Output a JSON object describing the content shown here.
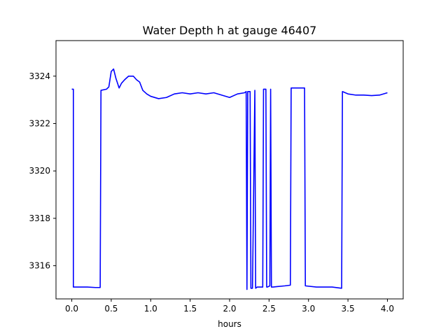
{
  "chart_data": {
    "type": "line",
    "title": "Water Depth h at gauge 46407",
    "xlabel": "hours",
    "ylabel": "",
    "xlim": [
      -0.2,
      4.2
    ],
    "ylim": [
      3314.6,
      3325.5
    ],
    "xticks": [
      0.0,
      0.5,
      1.0,
      1.5,
      2.0,
      2.5,
      3.0,
      3.5,
      4.0
    ],
    "xtick_labels": [
      "0.0",
      "0.5",
      "1.0",
      "1.5",
      "2.0",
      "2.5",
      "3.0",
      "3.5",
      "4.0"
    ],
    "yticks": [
      3316,
      3318,
      3320,
      3322,
      3324
    ],
    "ytick_labels": [
      "3316",
      "3318",
      "3320",
      "3322",
      "3324"
    ],
    "grid": false,
    "series": [
      {
        "color": "#0000ff",
        "x": [
          0.0,
          0.02,
          0.02,
          0.1,
          0.2,
          0.3,
          0.36,
          0.37,
          0.44,
          0.47,
          0.5,
          0.53,
          0.56,
          0.6,
          0.63,
          0.67,
          0.72,
          0.78,
          0.82,
          0.86,
          0.9,
          0.95,
          1.0,
          1.1,
          1.2,
          1.3,
          1.4,
          1.5,
          1.6,
          1.7,
          1.8,
          1.9,
          2.0,
          2.1,
          2.19,
          2.21,
          2.22,
          2.23,
          2.26,
          2.27,
          2.29,
          2.32,
          2.33,
          2.35,
          2.42,
          2.43,
          2.46,
          2.47,
          2.48,
          2.51,
          2.52,
          2.53,
          2.55,
          2.6,
          2.7,
          2.77,
          2.78,
          2.85,
          2.95,
          2.96,
          3.1,
          3.3,
          3.42,
          3.43,
          3.5,
          3.6,
          3.7,
          3.8,
          3.9,
          4.0
        ],
        "y": [
          3323.45,
          3323.45,
          3315.1,
          3315.1,
          3315.1,
          3315.08,
          3315.08,
          3323.4,
          3323.45,
          3323.55,
          3324.2,
          3324.3,
          3323.9,
          3323.5,
          3323.7,
          3323.85,
          3324.0,
          3324.0,
          3323.85,
          3323.75,
          3323.4,
          3323.25,
          3323.15,
          3323.05,
          3323.1,
          3323.25,
          3323.3,
          3323.25,
          3323.3,
          3323.25,
          3323.3,
          3323.2,
          3323.1,
          3323.25,
          3323.3,
          3323.35,
          3315.0,
          3323.35,
          3323.35,
          3315.05,
          3315.05,
          3323.4,
          3315.05,
          3315.1,
          3315.1,
          3323.45,
          3323.45,
          3315.1,
          3315.1,
          3315.15,
          3323.45,
          3315.1,
          3315.1,
          3315.12,
          3315.15,
          3315.18,
          3323.5,
          3323.5,
          3323.5,
          3315.15,
          3315.1,
          3315.1,
          3315.05,
          3323.35,
          3323.25,
          3323.2,
          3323.2,
          3323.18,
          3323.2,
          3323.3
        ]
      }
    ]
  }
}
